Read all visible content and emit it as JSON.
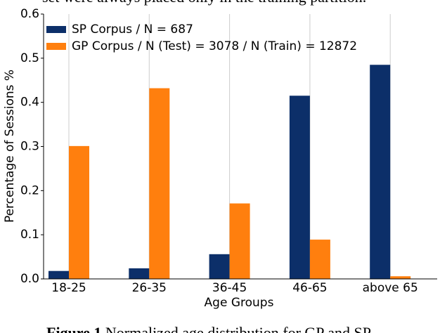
{
  "page_text": {
    "top": "set were always placed only in the training partition.",
    "caption_label": "Figure 1",
    "caption": "Normalized age distribution for GP and SP"
  },
  "chart_data": {
    "type": "bar",
    "y_label": "Percentage of Sessions %",
    "x_label": "Age Groups",
    "categories": [
      "18-25",
      "26-35",
      "36-45",
      "46-65",
      "above 65"
    ],
    "series": [
      {
        "name": "SP Corpus / N = 687",
        "color": "#0c2f69",
        "values": [
          0.018,
          0.024,
          0.056,
          0.415,
          0.485
        ]
      },
      {
        "name": "GP Corpus / N (Test) = 3078 / N (Train) = 12872",
        "color": "#ff7f0e",
        "values": [
          0.301,
          0.432,
          0.171,
          0.089,
          0.006
        ]
      }
    ],
    "ylim": [
      0,
      0.6
    ],
    "yticks": [
      {
        "value": 0,
        "label": "0.0"
      },
      0.1,
      0.2,
      0.3,
      0.4,
      0.5,
      0.6
    ],
    "grid": "x",
    "legend": "upper-left"
  }
}
